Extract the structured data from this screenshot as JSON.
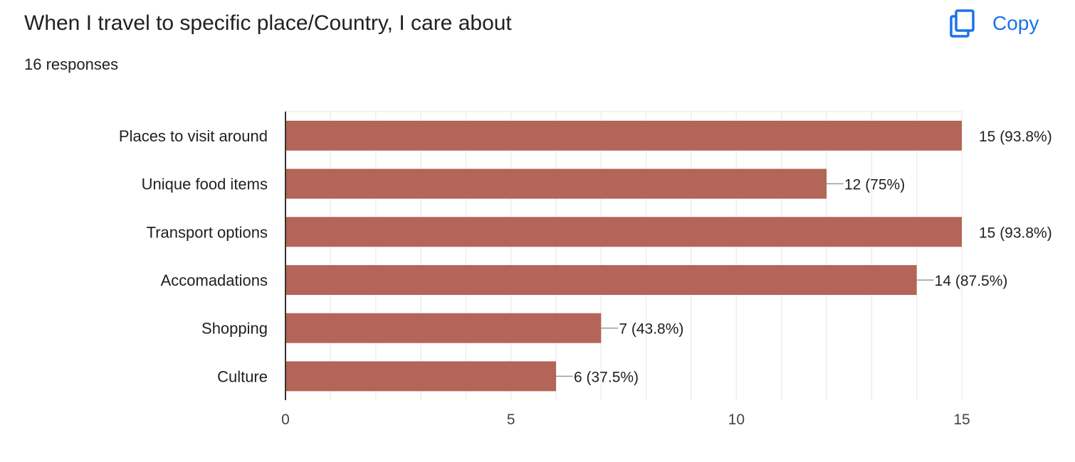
{
  "header": {
    "title": "When I travel to specific place/Country, I care about",
    "responses": "16 responses",
    "copy_label": "Copy"
  },
  "icons": {
    "copy": "copy-icon"
  },
  "colors": {
    "bar": "#b36557",
    "accent": "#1a73e8",
    "grid": "#eeeeee",
    "axis": "#333333"
  },
  "chart_data": {
    "type": "bar",
    "orientation": "horizontal",
    "categories": [
      "Places to visit around",
      "Unique food items",
      "Transport options",
      "Accomadations",
      "Shopping",
      "Culture"
    ],
    "values": [
      15,
      12,
      15,
      14,
      7,
      6
    ],
    "data_labels": [
      "15 (93.8%)",
      "12 (75%)",
      "15 (93.8%)",
      "14 (87.5%)",
      "7 (43.8%)",
      "6 (37.5%)"
    ],
    "xlim": [
      0,
      15
    ],
    "xticks": [
      "0",
      "5",
      "10",
      "15"
    ],
    "grid": true
  }
}
